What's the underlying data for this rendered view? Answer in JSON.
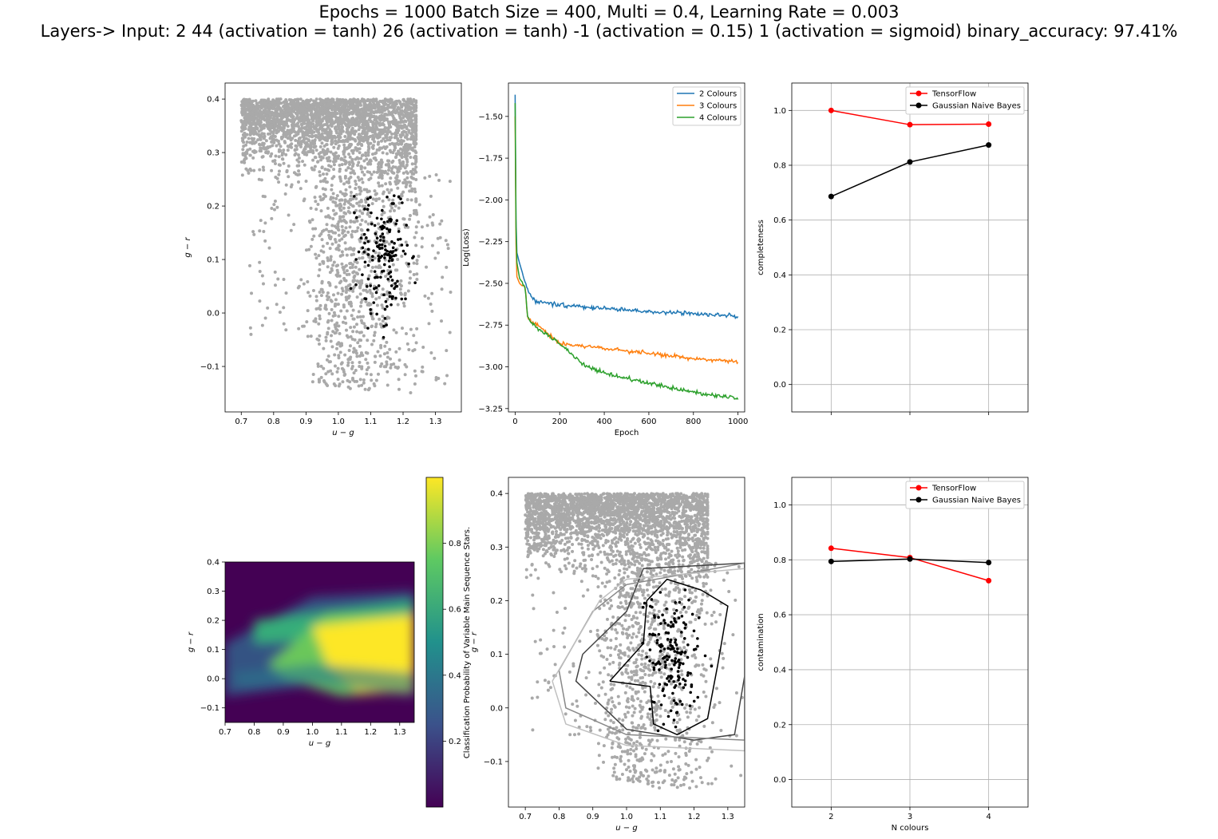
{
  "title_line1": "Epochs = 1000 Batch Size = 400, Multi = 0.4, Learning Rate = 0.003",
  "title_line2": "Layers-> Input: 2  44 (activation = tanh) 26 (activation = tanh) -1 (activation = 0.15) 1 (activation = sigmoid) binary_accuracy: 97.41%",
  "colors": {
    "background_points": "#a9a9a9",
    "variable_points": "#000000",
    "c2": "#1f77b4",
    "c3": "#ff7f0e",
    "c4": "#2ca02c",
    "tensorflow": "#ff0000",
    "gnb": "#000000"
  },
  "chart_data": [
    {
      "id": "scatter_top",
      "type": "scatter",
      "xlabel": "u − g",
      "ylabel": "g − r",
      "xlim": [
        0.65,
        1.38
      ],
      "ylim": [
        -0.185,
        0.43
      ],
      "xticks": [
        "0.7",
        "0.8",
        "0.9",
        "1.0",
        "1.1",
        "1.2",
        "1.3"
      ],
      "yticks": [
        "−0.1",
        "0.0",
        "0.1",
        "0.2",
        "0.3",
        "0.4"
      ],
      "series": [
        {
          "role": "all stars (grey)",
          "x_range": [
            0.7,
            1.35
          ],
          "y_range": [
            -0.15,
            0.4
          ]
        },
        {
          "role": "variable main sequence stars (black)",
          "x_range": [
            0.9,
            1.25
          ],
          "y_range": [
            -0.04,
            0.22
          ]
        }
      ]
    },
    {
      "id": "loss_curves",
      "type": "line",
      "xlabel": "Epoch",
      "ylabel": "Log(Loss)",
      "xlim": [
        -30,
        1030
      ],
      "ylim": [
        -3.27,
        -1.3
      ],
      "xticks": [
        "0",
        "200",
        "400",
        "600",
        "800",
        "1000"
      ],
      "yticks": [
        "−3.25",
        "−3.00",
        "−2.75",
        "−2.50",
        "−2.25",
        "−2.00",
        "−1.75",
        "−1.50"
      ],
      "legend_position": "top-right",
      "series": [
        {
          "name": "2 Colours",
          "x": [
            0,
            5,
            20,
            40,
            60,
            80,
            100,
            200,
            400,
            600,
            800,
            1000
          ],
          "y": [
            -1.37,
            -2.3,
            -2.38,
            -2.47,
            -2.55,
            -2.59,
            -2.61,
            -2.63,
            -2.65,
            -2.67,
            -2.68,
            -2.7
          ]
        },
        {
          "name": "3 Colours",
          "x": [
            0,
            5,
            20,
            35,
            45,
            55,
            70,
            100,
            200,
            400,
            600,
            800,
            1000
          ],
          "y": [
            -1.5,
            -2.45,
            -2.5,
            -2.52,
            -2.52,
            -2.7,
            -2.72,
            -2.75,
            -2.86,
            -2.89,
            -2.92,
            -2.95,
            -2.97
          ]
        },
        {
          "name": "4 Colours",
          "x": [
            0,
            5,
            20,
            35,
            45,
            55,
            70,
            100,
            200,
            300,
            400,
            600,
            800,
            1000
          ],
          "y": [
            -1.42,
            -2.35,
            -2.47,
            -2.5,
            -2.52,
            -2.7,
            -2.73,
            -2.77,
            -2.86,
            -2.98,
            -3.04,
            -3.1,
            -3.15,
            -3.19
          ]
        }
      ]
    },
    {
      "id": "completeness",
      "type": "line",
      "xlabel": "",
      "ylabel": "completeness",
      "xlim": [
        1.5,
        4.5
      ],
      "ylim": [
        -0.1,
        1.1
      ],
      "xticks": [
        "2",
        "3",
        "4"
      ],
      "yticks": [
        "0.0",
        "0.2",
        "0.4",
        "0.6",
        "0.8",
        "1.0"
      ],
      "grid": true,
      "legend_position": "top-right",
      "x": [
        2,
        3,
        4
      ],
      "series": [
        {
          "name": "TensorFlow",
          "values": [
            1.0,
            0.948,
            0.95
          ]
        },
        {
          "name": "Gaussian Naive Bayes",
          "values": [
            0.686,
            0.812,
            0.874
          ]
        }
      ]
    },
    {
      "id": "probability_map",
      "type": "heatmap",
      "xlabel": "u − g",
      "ylabel": "g − r",
      "xlim": [
        0.7,
        1.35
      ],
      "ylim": [
        -0.15,
        0.4
      ],
      "xticks": [
        "0.7",
        "0.8",
        "0.9",
        "1.0",
        "1.1",
        "1.2",
        "1.3"
      ],
      "yticks": [
        "−0.1",
        "0.0",
        "0.1",
        "0.2",
        "0.3",
        "0.4"
      ],
      "colorbar_label": "Classification Probability of Variable Main Sequence Stars.",
      "colorbar_ticks": [
        "0.2",
        "0.4",
        "0.6",
        "0.8"
      ],
      "colorbar_range": [
        0.0,
        1.0
      ]
    },
    {
      "id": "scatter_contours",
      "type": "scatter",
      "xlabel": "u − g",
      "ylabel": "g − r",
      "xlim": [
        0.65,
        1.35
      ],
      "ylim": [
        -0.185,
        0.43
      ],
      "xticks": [
        "0.7",
        "0.8",
        "0.9",
        "1.0",
        "1.1",
        "1.2",
        "1.3"
      ],
      "yticks": [
        "−0.1",
        "0.0",
        "0.1",
        "0.2",
        "0.3",
        "0.4"
      ],
      "overlay": "decision boundary contours, 4 levels (black to light grey)"
    },
    {
      "id": "contamination",
      "type": "line",
      "xlabel": "N colours",
      "ylabel": "contamination",
      "xlim": [
        1.5,
        4.5
      ],
      "ylim": [
        -0.1,
        1.1
      ],
      "xticks": [
        "2",
        "3",
        "4"
      ],
      "yticks": [
        "0.0",
        "0.2",
        "0.4",
        "0.6",
        "0.8",
        "1.0"
      ],
      "grid": true,
      "legend_position": "top-right",
      "x": [
        2,
        3,
        4
      ],
      "series": [
        {
          "name": "TensorFlow",
          "values": [
            0.842,
            0.808,
            0.724
          ]
        },
        {
          "name": "Gaussian Naive Bayes",
          "values": [
            0.794,
            0.803,
            0.79
          ]
        }
      ]
    }
  ]
}
